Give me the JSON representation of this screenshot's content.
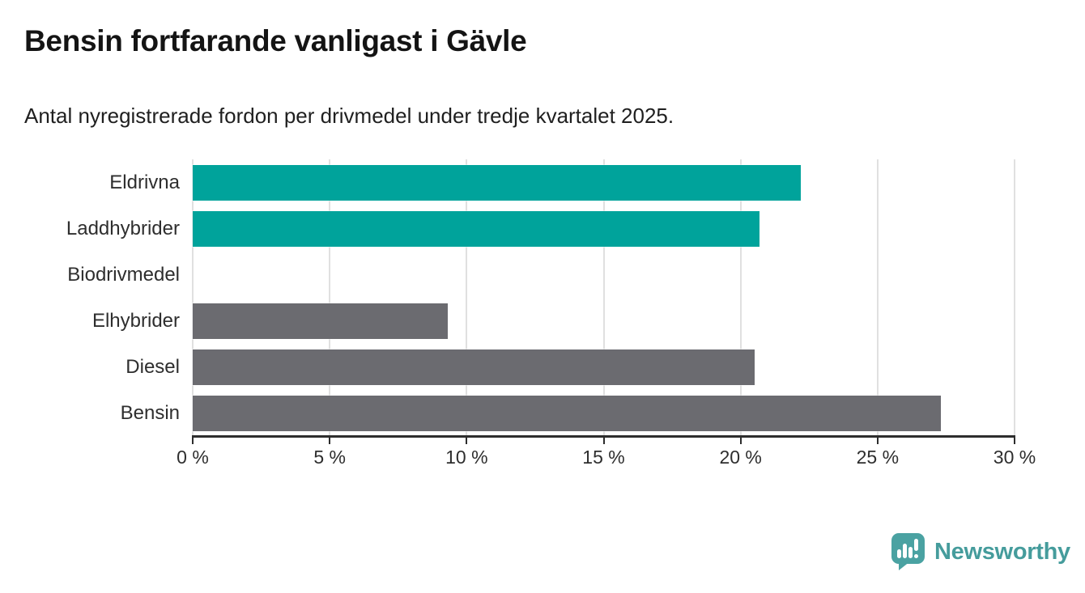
{
  "title": "Bensin fortfarande vanligast i Gävle",
  "subtitle": "Antal nyregistrerade fordon per drivmedel under tredje kvartalet 2025.",
  "brand": {
    "name": "Newsworthy",
    "text_color": "#459c9c",
    "bubble_color": "#4aa2a2",
    "icon": "speech-bubble-bar-chart-icon"
  },
  "chart_data": {
    "type": "bar",
    "orientation": "horizontal",
    "title": "Bensin fortfarande vanligast i Gävle",
    "subtitle": "Antal nyregistrerade fordon per drivmedel under tredje kvartalet 2025.",
    "categories": [
      "Eldrivna",
      "Laddhybrider",
      "Biodrivmedel",
      "Elhybrider",
      "Diesel",
      "Bensin"
    ],
    "values": [
      22.2,
      20.7,
      0,
      9.3,
      20.5,
      27.3
    ],
    "unit": "%",
    "bar_colors": [
      "#00a39b",
      "#00a39b",
      "#6b6b70",
      "#6b6b70",
      "#6b6b70",
      "#6b6b70"
    ],
    "accent_color": "#00a39b",
    "neutral_color": "#6b6b70",
    "xlabel": "",
    "ylabel": "",
    "xlim": [
      0,
      30
    ],
    "tick_values": [
      0,
      5,
      10,
      15,
      20,
      25,
      30
    ],
    "x_ticks": [
      "0 %",
      "5 %",
      "10 %",
      "15 %",
      "20 %",
      "25 %",
      "30 %"
    ],
    "grid": true,
    "gridline_color": "#e0e0e0",
    "axis_color": "#2d2d2d",
    "legend": false
  }
}
